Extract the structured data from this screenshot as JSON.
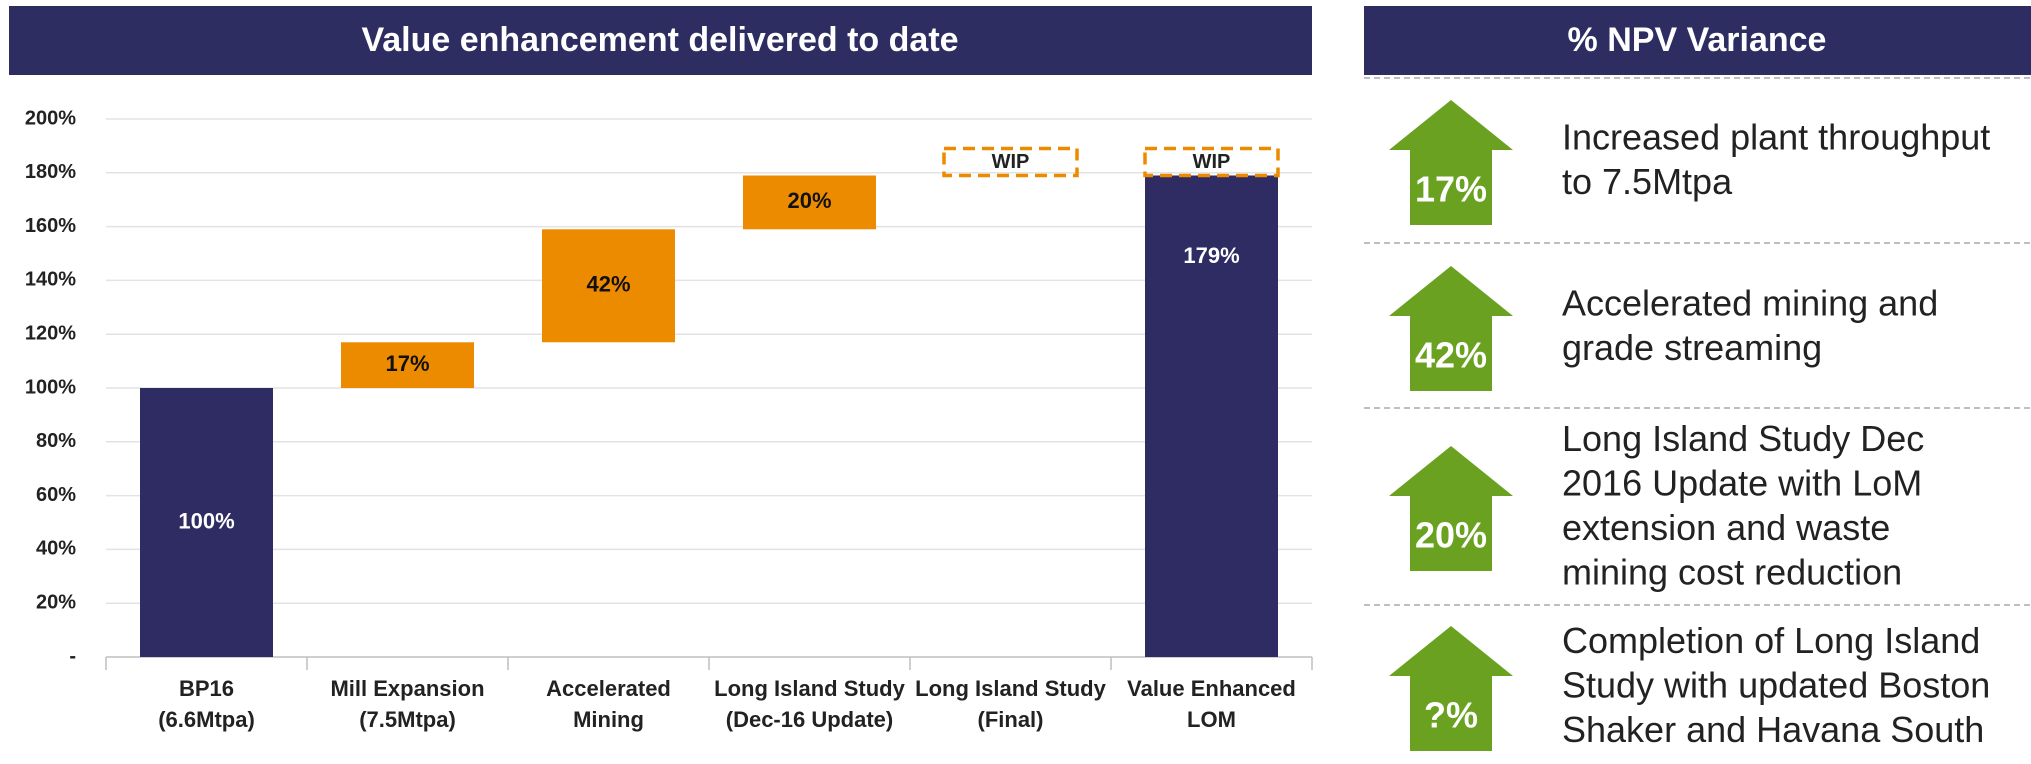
{
  "chart_data": {
    "type": "waterfall",
    "title": "Value enhancement delivered to date",
    "categories": [
      "BP16\n(6.6Mtpa)",
      "Mill Expansion\n(7.5Mtpa)",
      "Accelerated\nMining",
      "Long Island  Study\n(Dec-16 Update)",
      "Long Island Study\n(Final)",
      "Value Enhanced\nLOM"
    ],
    "measure": [
      "absolute",
      "relative",
      "relative",
      "relative",
      "relative",
      "total"
    ],
    "values": [
      100,
      17,
      42,
      20,
      null,
      179
    ],
    "value_labels": [
      "100%",
      "17%",
      "42%",
      "20%",
      null,
      "179%"
    ],
    "colors": {
      "total": "#2e2c63",
      "increase": "#ed8b00",
      "wip": "#ed8b00"
    },
    "annotations": [
      {
        "text": "WIP",
        "category": "Long Island Study\n(Final)"
      },
      {
        "text": "WIP",
        "category": "Value Enhanced\nLOM"
      }
    ],
    "ylim": [
      0,
      200
    ],
    "yticks": [
      {
        "value": 0,
        "label": "-"
      },
      {
        "value": 20,
        "label": "20%"
      },
      {
        "value": 40,
        "label": "40%"
      },
      {
        "value": 60,
        "label": "60%"
      },
      {
        "value": 80,
        "label": "80%"
      },
      {
        "value": 100,
        "label": "100%"
      },
      {
        "value": 120,
        "label": "120%"
      },
      {
        "value": 140,
        "label": "140%"
      },
      {
        "value": 160,
        "label": "160%"
      },
      {
        "value": 180,
        "label": "180%"
      },
      {
        "value": 200,
        "label": "200%"
      }
    ],
    "grid": true
  },
  "npv_variance": {
    "title": "% NPV Variance",
    "color": "#6aa121",
    "items": [
      {
        "value": "17%",
        "lines": [
          "Increased plant throughput",
          "to 7.5Mtpa"
        ]
      },
      {
        "value": "42%",
        "lines": [
          "Accelerated mining and",
          "grade streaming"
        ]
      },
      {
        "value": "20%",
        "lines": [
          "Long Island Study Dec",
          "2016 Update with LoM",
          "extension and waste",
          "mining cost reduction"
        ]
      },
      {
        "value": "?%",
        "lines": [
          "Completion of Long Island",
          "Study with updated Boston",
          "Shaker and Havana South"
        ]
      }
    ]
  }
}
